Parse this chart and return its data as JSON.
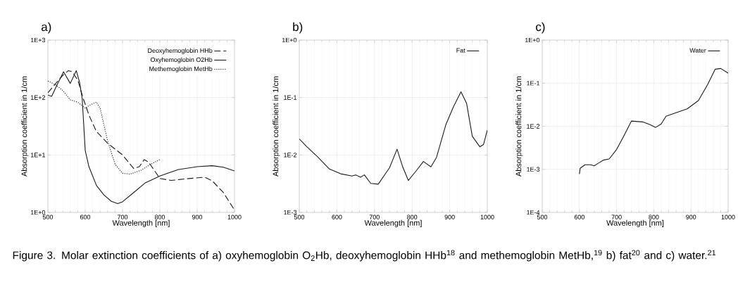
{
  "chart_data": [
    {
      "type": "line",
      "title": "a)",
      "xlabel": "Wavelength [nm]",
      "ylabel": "Absorption coefficient in 1/cm",
      "log": "y",
      "grid": true,
      "legend": "top right",
      "xlim": [
        500,
        1000
      ],
      "xticks": [
        500,
        600,
        700,
        800,
        900,
        1000
      ],
      "ylim": [
        1,
        1000
      ],
      "yticks": [
        {
          "value": 1,
          "label": "1E+0"
        },
        {
          "value": 10,
          "label": "1E+1"
        },
        {
          "value": 100,
          "label": "1E+2"
        },
        {
          "value": 1000,
          "label": "1E+3"
        }
      ],
      "series": [
        {
          "name": "Deoxyhemoglobin HHb",
          "color": "#1a1a1a",
          "line_style": "dashed",
          "x": [
            500,
            520,
            540,
            555,
            565,
            580,
            595,
            610,
            630,
            660,
            700,
            730,
            745,
            758,
            770,
            800,
            830,
            870,
            920,
            940,
            970,
            1000
          ],
          "values": [
            121,
            172,
            244,
            294,
            281,
            202,
            95,
            49.4,
            25.6,
            16,
            10,
            5.8,
            6.25,
            8.3,
            7.5,
            3.9,
            3.6,
            3.84,
            4.1,
            3.56,
            2.22,
            1.1
          ]
        },
        {
          "name": "Oxyhemoglobin O2Hb",
          "color": "#1a1a1a",
          "line_style": "solid",
          "x": [
            500,
            510,
            525,
            542,
            560,
            576,
            585,
            592,
            600,
            610,
            630,
            650,
            670,
            687,
            700,
            730,
            760,
            800,
            850,
            900,
            940,
            970,
            1000
          ],
          "values": [
            110,
            105,
            168,
            281,
            176,
            294,
            184,
            95,
            12,
            6.25,
            2.95,
            2.02,
            1.56,
            1.42,
            1.53,
            2.22,
            3.24,
            4.29,
            5.58,
            6.25,
            6.5,
            6.13,
            5.28
          ]
        },
        {
          "name": "Methemoglobin MetHb",
          "color": "#1a1a1a",
          "line_style": "dotted",
          "x": [
            500,
            520,
            540,
            560,
            580,
            600,
            615,
            630,
            640,
            660,
            680,
            700,
            720,
            750,
            775,
            800
          ],
          "values": [
            193,
            168,
            132,
            91,
            83,
            65,
            75.5,
            83,
            65,
            17.6,
            6.9,
            4.8,
            4.63,
            5.43,
            6.87,
            8.3
          ]
        }
      ],
      "annotations": [
        "Figure 3. Molar extinction coefficients of a) oxyhemoglobin O$_{2}$Hb, deoxyhemoglobin HHb$^{18}$ and methemoglobin MetHb,$^{19}$ b) fat$^{20}$ and c) water.$^{21}$"
      ]
    },
    {
      "type": "line",
      "title": "b)",
      "xlabel": "Wavelength [nm]",
      "ylabel": "Absorption coefficient in 1/cm",
      "log": "y",
      "grid": true,
      "legend": "top right",
      "xlim": [
        500,
        1000
      ],
      "xticks": [
        500,
        600,
        700,
        800,
        900,
        1000
      ],
      "ylim": [
        0.001,
        1
      ],
      "yticks": [
        {
          "value": 0.001,
          "label": "1E-3"
        },
        {
          "value": 0.01,
          "label": "1E-2"
        },
        {
          "value": 0.1,
          "label": "1E-1"
        },
        {
          "value": 1,
          "label": "1E+0"
        }
      ],
      "series": [
        {
          "name": "Fat",
          "color": "#1a1a1a",
          "line_style": "solid",
          "x": [
            500,
            520,
            550,
            580,
            610,
            640,
            650,
            663,
            673,
            690,
            710,
            740,
            760,
            775,
            790,
            810,
            830,
            850,
            865,
            890,
            910,
            930,
            945,
            960,
            980,
            990,
            1000
          ],
          "values": [
            0.019,
            0.0139,
            0.0091,
            0.0057,
            0.0047,
            0.0043,
            0.0045,
            0.0041,
            0.0045,
            0.0032,
            0.0031,
            0.006,
            0.0126,
            0.0062,
            0.0036,
            0.0052,
            0.0077,
            0.0062,
            0.0091,
            0.034,
            0.069,
            0.126,
            0.079,
            0.0212,
            0.0139,
            0.0152,
            0.027
          ]
        }
      ]
    },
    {
      "type": "line",
      "title": "c)",
      "xlabel": "Wavelength [nm]",
      "ylabel": "Absorption coefficient in 1/cm",
      "log": "y",
      "grid": true,
      "legend": "top right",
      "xlim": [
        500,
        1000
      ],
      "xticks": [
        500,
        600,
        700,
        800,
        900,
        1000
      ],
      "ylim": [
        0.0001,
        1
      ],
      "yticks": [
        {
          "value": 0.0001,
          "label": "1E-4"
        },
        {
          "value": 0.001,
          "label": "1E-3"
        },
        {
          "value": 0.01,
          "label": "1E-2"
        },
        {
          "value": 0.1,
          "label": "1E-1"
        },
        {
          "value": 1,
          "label": "1E+0"
        }
      ],
      "series": [
        {
          "name": "Water",
          "color": "#1a1a1a",
          "line_style": "solid",
          "x": [
            600,
            602,
            615,
            630,
            640,
            650,
            665,
            680,
            700,
            720,
            740,
            770,
            790,
            805,
            820,
            833,
            860,
            890,
            920,
            945,
            965,
            980,
            1000
          ],
          "values": [
            0.00078,
            0.00106,
            0.00128,
            0.00128,
            0.00121,
            0.00137,
            0.00164,
            0.00174,
            0.00288,
            0.0061,
            0.0132,
            0.0126,
            0.0109,
            0.0094,
            0.0113,
            0.0171,
            0.0206,
            0.0254,
            0.0394,
            0.094,
            0.211,
            0.219,
            0.171
          ]
        }
      ]
    }
  ]
}
